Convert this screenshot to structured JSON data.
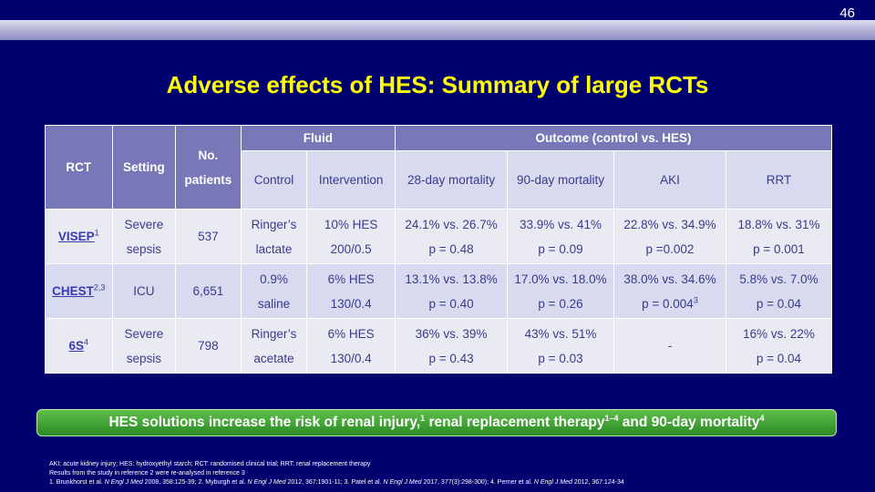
{
  "slide_number": "46",
  "title": "Adverse effects of HES: Summary of large RCTs",
  "table": {
    "headers": {
      "rct": "RCT",
      "setting": "Setting",
      "no_patients": "No. patients",
      "fluid": "Fluid",
      "outcome": "Outcome (control vs. HES)",
      "control": "Control",
      "intervention": "Intervention",
      "mortality28": "28-day mortality",
      "mortality90": "90-day mortality",
      "aki": "AKI",
      "rrt": "RRT"
    },
    "rows": [
      {
        "rct": "VISEP",
        "rct_sup": "1",
        "setting": "Severe sepsis",
        "patients": "537",
        "control": "Ringer’s lactate",
        "intervention": "10% HES 200/0.5",
        "m28": "24.1% vs. 26.7%",
        "m28_p": "p = 0.48",
        "m90": "33.9% vs. 41%",
        "m90_p": "p = 0.09",
        "aki": "22.8% vs. 34.9%",
        "aki_p": "p =0.002",
        "aki_sup": "",
        "rrt": "18.8% vs. 31%",
        "rrt_p": "p = 0.001"
      },
      {
        "rct": "CHEST",
        "rct_sup": "2,3",
        "setting": "ICU",
        "patients": "6,651",
        "control": "0.9% saline",
        "intervention": "6% HES 130/0.4",
        "m28": "13.1% vs. 13.8%",
        "m28_p": "p = 0.40",
        "m90": "17.0% vs. 18.0%",
        "m90_p": "p = 0.26",
        "aki": "38.0% vs. 34.6%",
        "aki_p": "p = 0.004",
        "aki_sup": "3",
        "rrt": "5.8% vs. 7.0%",
        "rrt_p": "p = 0.04"
      },
      {
        "rct": "6S",
        "rct_sup": "4",
        "setting": "Severe sepsis",
        "patients": "798",
        "control": "Ringer’s acetate",
        "intervention": "6% HES 130/0.4",
        "m28": "36% vs. 39%",
        "m28_p": "p = 0.43",
        "m90": "43% vs. 51%",
        "m90_p": "p = 0.03",
        "aki": "-",
        "aki_p": "",
        "aki_sup": "",
        "rrt": "16% vs. 22%",
        "rrt_p": "p = 0.04"
      }
    ]
  },
  "banner": {
    "text1": "HES solutions increase the risk of renal injury,",
    "sup1": "1",
    "text2": " renal replacement therapy",
    "sup2": "1–4",
    "text3": " and 90-day mortality",
    "sup3": "4"
  },
  "footnotes": {
    "abbrev": "AKI: acute kidney injury; HES: hydroxyethyl starch; RCT: randomised clinical trial; RRT: renal replacement therapy",
    "note": "Results from the study in reference 2 were re-analysed in reference 3",
    "ref1": "1. Brunkhorst et al. ",
    "ref1_j": "N Engl J Med",
    "ref1_r": " 2008, 358:125-39; 2. Myburgh et al. ",
    "ref2_j": "N Engl J Med",
    "ref2_r": " 2012, 367:1901-11; 3. Patel et al. ",
    "ref3_j": "N Engl J Med",
    "ref3_r": " 2017, 377(3):298-300); 4. Perner et al. ",
    "ref4_j": "N Engl J Med",
    "ref4_r": " 2012, 367:124-34"
  }
}
